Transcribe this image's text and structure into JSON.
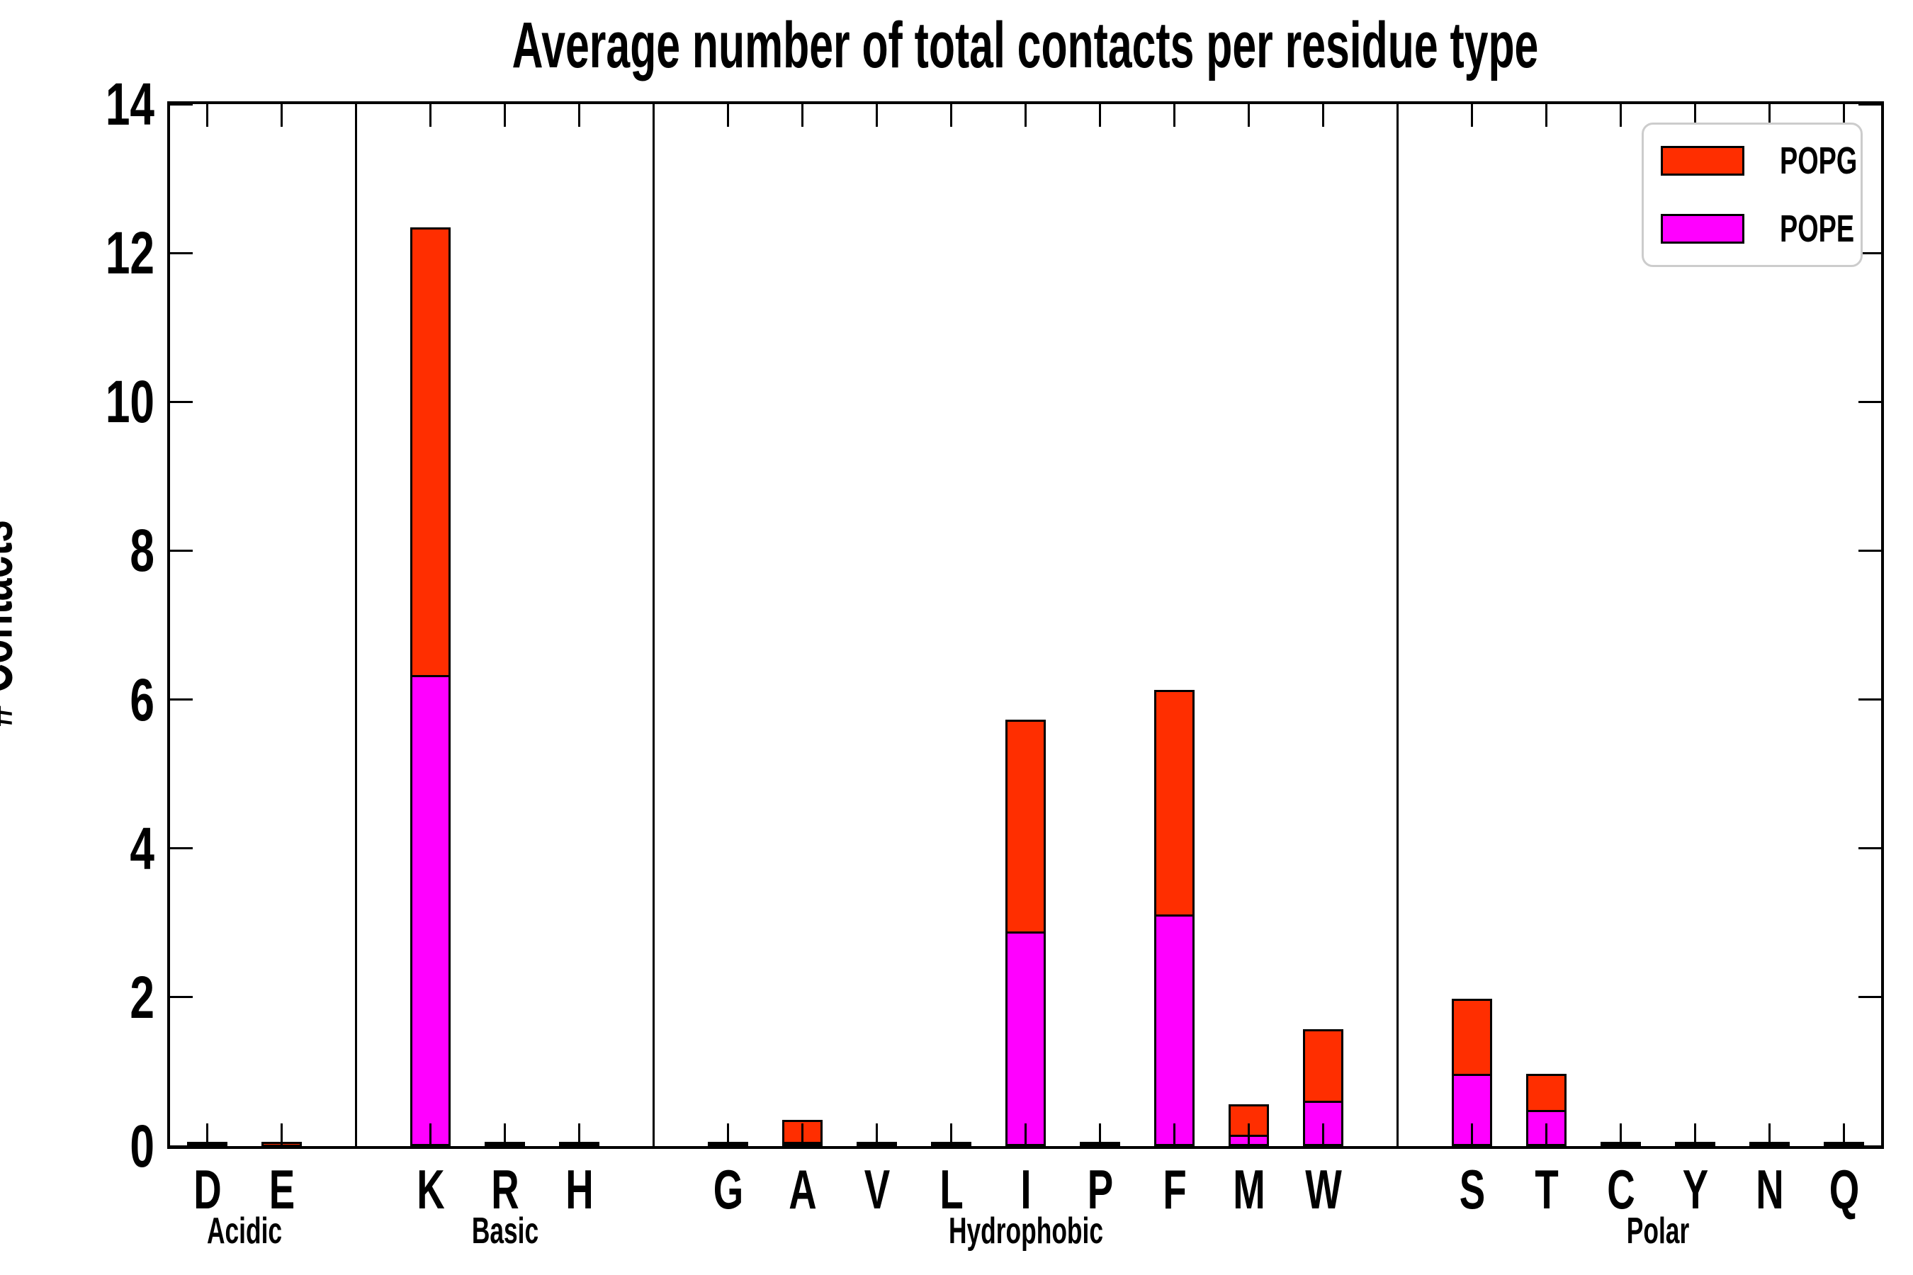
{
  "figure": {
    "title": "Average number of total contacts per residue type",
    "background_color": "#ffffff"
  },
  "y_axis": {
    "label": "# Contacts",
    "tick_values": [
      0,
      2,
      4,
      6,
      8,
      10,
      12,
      14
    ],
    "min": 0,
    "max": 14
  },
  "legend": {
    "items": [
      {
        "label": "POPG",
        "color": "#ff2e00"
      },
      {
        "label": "POPE",
        "color": "#ff00ff"
      }
    ]
  },
  "chart_data": {
    "type": "bar",
    "stacked": true,
    "title": "Average number of total contacts per residue type",
    "xlabel": "",
    "ylabel": "# Contacts",
    "ylim": [
      0,
      14
    ],
    "grid": false,
    "legend_position": "upper right",
    "groups": [
      {
        "label": "Acidic",
        "residues": [
          "D",
          "E"
        ]
      },
      {
        "label": "Basic",
        "residues": [
          "K",
          "R",
          "H"
        ]
      },
      {
        "label": "Hydrophobic",
        "residues": [
          "G",
          "A",
          "V",
          "L",
          "I",
          "P",
          "F",
          "M",
          "W"
        ]
      },
      {
        "label": "Polar",
        "residues": [
          "S",
          "T",
          "C",
          "Y",
          "N",
          "Q"
        ]
      }
    ],
    "categories": [
      "D",
      "E",
      "K",
      "R",
      "H",
      "G",
      "A",
      "V",
      "L",
      "I",
      "P",
      "F",
      "M",
      "W",
      "S",
      "T",
      "C",
      "Y",
      "N",
      "Q"
    ],
    "series": [
      {
        "name": "POPE",
        "color": "#ff00ff",
        "values": [
          0.01,
          0.02,
          6.33,
          0.01,
          0.01,
          0.01,
          0.06,
          0.005,
          0.02,
          2.88,
          0.005,
          3.11,
          0.15,
          0.61,
          0.97,
          0.49,
          0.01,
          0.005,
          0.005,
          0.01
        ]
      },
      {
        "name": "POPG",
        "color": "#ff2e00",
        "values": [
          0.02,
          0.04,
          6.01,
          0.01,
          0.02,
          0.01,
          0.29,
          0.01,
          0.03,
          2.85,
          0.005,
          3.02,
          0.41,
          0.96,
          1.01,
          0.48,
          0.01,
          0.01,
          0.01,
          0.015
        ]
      }
    ],
    "totals": [
      0.03,
      0.06,
      12.34,
      0.02,
      0.03,
      0.02,
      0.35,
      0.015,
      0.05,
      5.73,
      0.01,
      6.13,
      0.56,
      1.57,
      1.98,
      0.97,
      0.02,
      0.015,
      0.015,
      0.025
    ]
  }
}
